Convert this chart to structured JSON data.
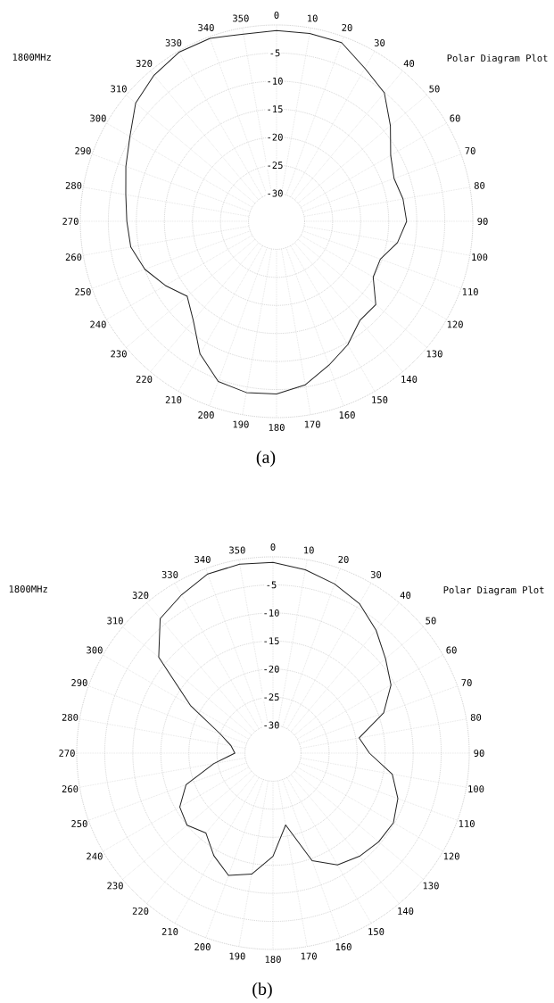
{
  "chart_data": [
    {
      "type": "radar",
      "title": "1800MHz",
      "subtitle": "Polar Diagram Plot",
      "annotations": [
        "(a)"
      ],
      "categories": [
        "0",
        "10",
        "20",
        "30",
        "40",
        "50",
        "60",
        "70",
        "80",
        "90",
        "100",
        "110",
        "120",
        "130",
        "140",
        "150",
        "160",
        "170",
        "180",
        "190",
        "200",
        "210",
        "220",
        "230",
        "240",
        "250",
        "260",
        "270",
        "280",
        "290",
        "300",
        "310",
        "320",
        "330",
        "340",
        "350"
      ],
      "series": [
        {
          "color": "#222222",
          "values": [
            -1.0,
            -1.0,
            -1.1,
            -3.5,
            -5.1,
            -8.5,
            -11.5,
            -12.7,
            -12.1,
            -11.8,
            -13.1,
            -15.3,
            -15.1,
            -11.9,
            -11.9,
            -9.6,
            -7.7,
            -5.4,
            -4.2,
            -4.0,
            -4.6,
            -7.7,
            -11.9,
            -14.2,
            -12.1,
            -10.0,
            -8.6,
            -8.3,
            -7.7,
            -6.4,
            -4.8,
            -2.2,
            -1.0,
            -0.2,
            -0.3,
            -1.1
          ]
        }
      ],
      "ylim": [
        -35,
        0
      ],
      "yticks": [
        -30,
        -25,
        -20,
        -15,
        -10,
        -5
      ],
      "grid": true
    },
    {
      "type": "radar",
      "title": "1800MHz",
      "subtitle": "Polar Diagram Plot",
      "annotations": [
        "(b)"
      ],
      "categories": [
        "0",
        "10",
        "20",
        "30",
        "40",
        "50",
        "60",
        "70",
        "80",
        "90",
        "100",
        "110",
        "120",
        "130",
        "140",
        "150",
        "160",
        "170",
        "180",
        "190",
        "200",
        "210",
        "220",
        "230",
        "240",
        "250",
        "260",
        "270",
        "280",
        "290",
        "300",
        "310",
        "320",
        "330",
        "340",
        "350"
      ],
      "series": [
        {
          "color": "#222222",
          "values": [
            -1.0,
            -1.8,
            -2.9,
            -4.2,
            -6.4,
            -8.8,
            -10.7,
            -14.0,
            -19.4,
            -17.8,
            -13.4,
            -11.3,
            -10.2,
            -10.4,
            -11.0,
            -12.0,
            -14.6,
            -22.0,
            -16.6,
            -13.1,
            -11.8,
            -13.9,
            -16.4,
            -15.0,
            -15.8,
            -18.5,
            -24.3,
            -28.2,
            -27.4,
            -25.0,
            -18.0,
            -8.4,
            -3.7,
            -2.4,
            -1.0,
            -0.8
          ]
        }
      ],
      "ylim": [
        -35,
        0
      ],
      "yticks": [
        -30,
        -25,
        -20,
        -15,
        -10,
        -5
      ],
      "grid": true
    }
  ]
}
